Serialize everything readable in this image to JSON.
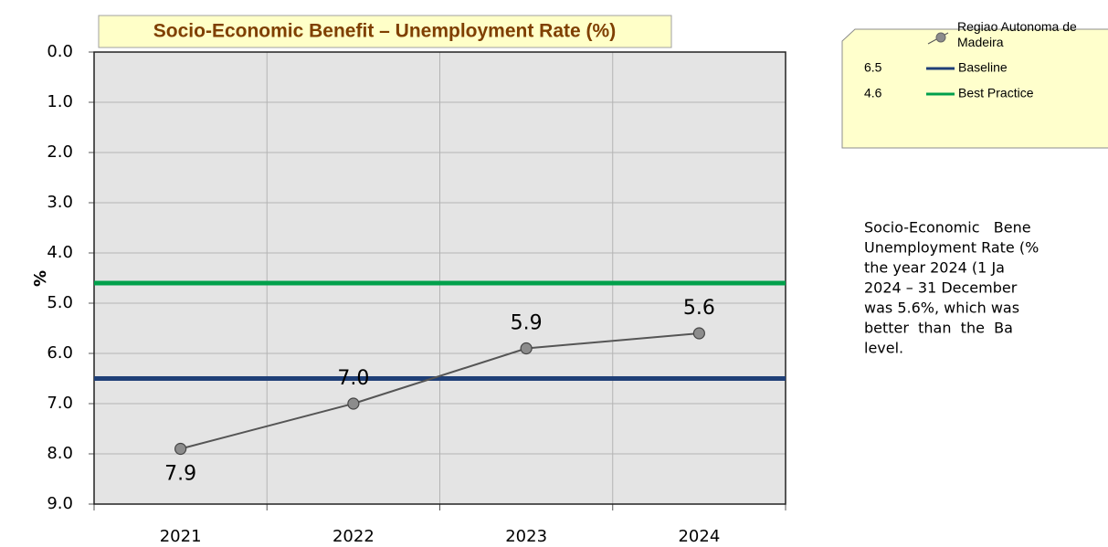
{
  "chart_data": {
    "type": "line",
    "title": "Socio-Economic Benefit – Unemployment Rate (%)",
    "y_label": "%",
    "categories": [
      "2021",
      "2022",
      "2023",
      "2024"
    ],
    "series": [
      {
        "name": "Regiao Autonoma de Madeira",
        "color": "#555555",
        "marker_color": "#8c8c8c",
        "values": [
          7.9,
          7.0,
          5.9,
          5.6
        ],
        "value_labels": [
          "7.9",
          "7.0",
          "5.9",
          "5.6"
        ]
      }
    ],
    "reference_lines": [
      {
        "name": "Baseline",
        "value": 6.5,
        "color": "#1f3f77"
      },
      {
        "name": "Best Practice",
        "value": 4.6,
        "color": "#00a04b"
      }
    ],
    "ylim": [
      0,
      9
    ],
    "y_inverted": true,
    "yticks": [
      {
        "value": 0,
        "label": "0.0"
      },
      {
        "value": 1,
        "label": "1.0"
      },
      {
        "value": 2,
        "label": "2.0"
      },
      {
        "value": 3,
        "label": "3.0"
      },
      {
        "value": 4,
        "label": "4.0"
      },
      {
        "value": 5,
        "label": "5.0"
      },
      {
        "value": 6,
        "label": "6.0"
      },
      {
        "value": 7,
        "label": "7.0"
      },
      {
        "value": 8,
        "label": "8.0"
      },
      {
        "value": 9,
        "label": "9.0"
      }
    ],
    "grid": true,
    "legend": "right",
    "text": [
      "Socio-Economic   Bene",
      "Unemployment Rate (%",
      "the year 2024 (1 Ja",
      "2024 – 31 December",
      "was 5.6%, which was",
      "better  than  the  Ba",
      "level."
    ]
  }
}
